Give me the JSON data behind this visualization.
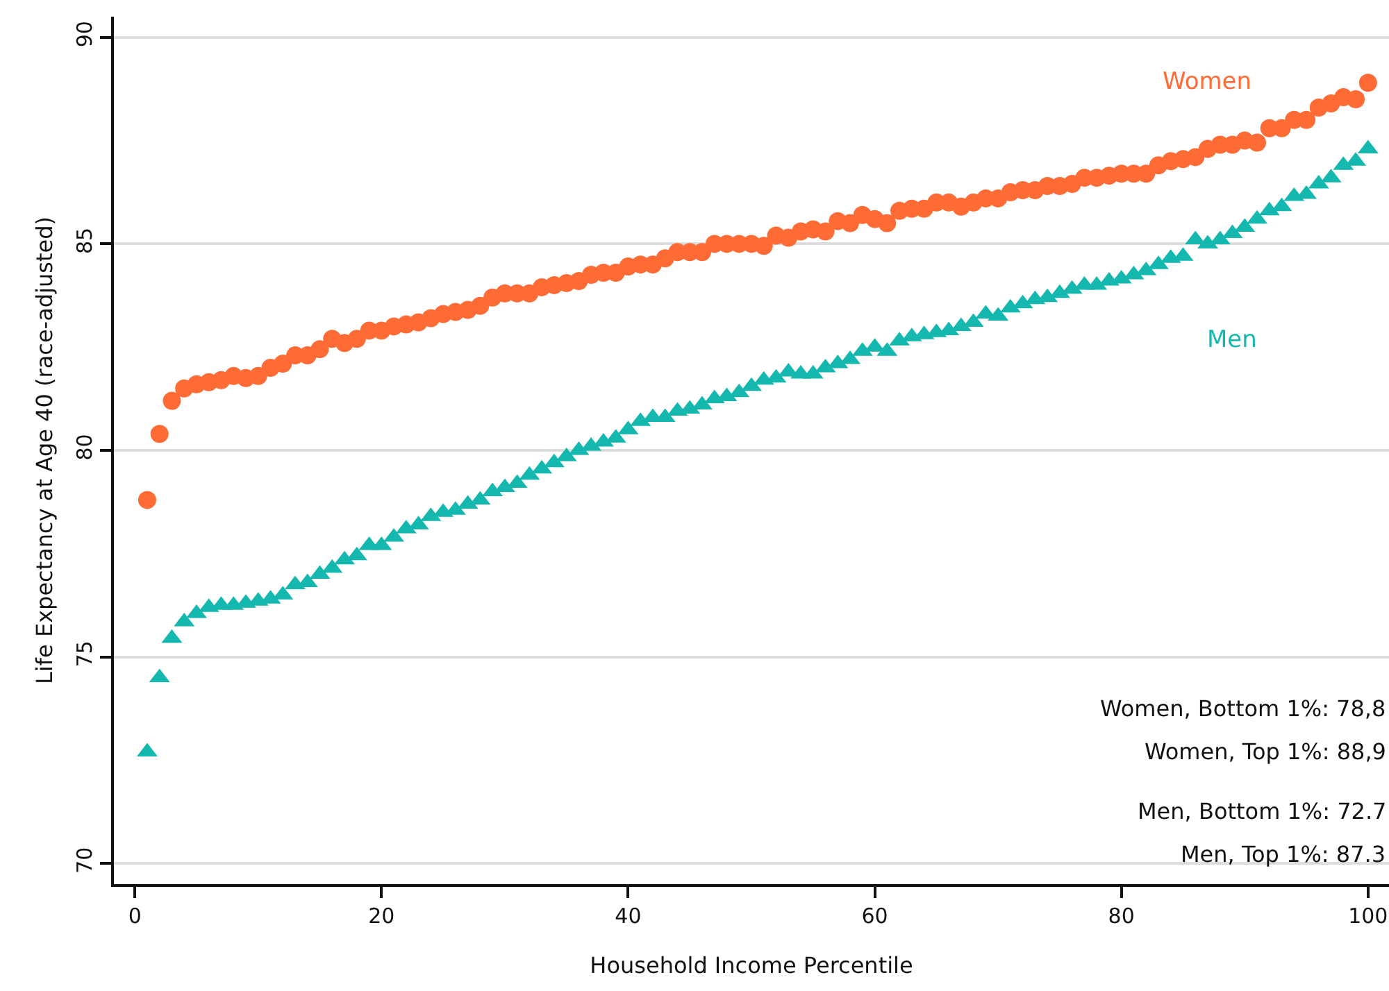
{
  "chart_data": {
    "type": "scatter",
    "xlabel": "Household Income Percentile",
    "ylabel": "Life Expectancy at Age 40 (race-adjusted)",
    "x": [
      1,
      2,
      3,
      4,
      5,
      6,
      7,
      8,
      9,
      10,
      11,
      12,
      13,
      14,
      15,
      16,
      17,
      18,
      19,
      20,
      21,
      22,
      23,
      24,
      25,
      26,
      27,
      28,
      29,
      30,
      31,
      32,
      33,
      34,
      35,
      36,
      37,
      38,
      39,
      40,
      41,
      42,
      43,
      44,
      45,
      46,
      47,
      48,
      49,
      50,
      51,
      52,
      53,
      54,
      55,
      56,
      57,
      58,
      59,
      60,
      61,
      62,
      63,
      64,
      65,
      66,
      67,
      68,
      69,
      70,
      71,
      72,
      73,
      74,
      75,
      76,
      77,
      78,
      79,
      80,
      81,
      82,
      83,
      84,
      85,
      86,
      87,
      88,
      89,
      90,
      91,
      92,
      93,
      94,
      95,
      96,
      97,
      98,
      99,
      100
    ],
    "series": [
      {
        "name": "Women",
        "color": "#ff6b35",
        "marker": "circle",
        "values": [
          78.8,
          80.4,
          81.2,
          81.5,
          81.6,
          81.65,
          81.7,
          81.8,
          81.75,
          81.8,
          82.0,
          82.1,
          82.3,
          82.3,
          82.45,
          82.7,
          82.6,
          82.7,
          82.9,
          82.9,
          83.0,
          83.05,
          83.1,
          83.2,
          83.3,
          83.35,
          83.4,
          83.5,
          83.7,
          83.8,
          83.8,
          83.8,
          83.95,
          84.0,
          84.05,
          84.1,
          84.25,
          84.3,
          84.3,
          84.45,
          84.5,
          84.5,
          84.65,
          84.8,
          84.8,
          84.8,
          85.0,
          85.0,
          85.0,
          85.0,
          84.95,
          85.2,
          85.15,
          85.3,
          85.35,
          85.3,
          85.55,
          85.5,
          85.7,
          85.6,
          85.5,
          85.8,
          85.85,
          85.85,
          86.0,
          86.0,
          85.9,
          86.0,
          86.1,
          86.1,
          86.25,
          86.3,
          86.3,
          86.4,
          86.4,
          86.45,
          86.6,
          86.6,
          86.65,
          86.7,
          86.7,
          86.7,
          86.9,
          87.0,
          87.05,
          87.1,
          87.3,
          87.4,
          87.4,
          87.5,
          87.45,
          87.8,
          87.8,
          88.0,
          88.0,
          88.3,
          88.4,
          88.55,
          88.5,
          88.9
        ]
      },
      {
        "name": "Men",
        "color": "#14b8ae",
        "marker": "triangle",
        "values": [
          72.7,
          74.5,
          75.45,
          75.85,
          76.05,
          76.2,
          76.25,
          76.25,
          76.3,
          76.35,
          76.4,
          76.5,
          76.75,
          76.8,
          77.0,
          77.15,
          77.35,
          77.45,
          77.7,
          77.7,
          77.9,
          78.1,
          78.2,
          78.4,
          78.5,
          78.55,
          78.7,
          78.8,
          79.0,
          79.1,
          79.2,
          79.4,
          79.55,
          79.7,
          79.85,
          80.0,
          80.1,
          80.2,
          80.3,
          80.5,
          80.7,
          80.8,
          80.8,
          80.95,
          81.0,
          81.1,
          81.25,
          81.3,
          81.4,
          81.55,
          81.7,
          81.75,
          81.9,
          81.85,
          81.85,
          82.0,
          82.1,
          82.2,
          82.4,
          82.5,
          82.4,
          82.65,
          82.75,
          82.8,
          82.85,
          82.9,
          83.0,
          83.1,
          83.3,
          83.25,
          83.45,
          83.55,
          83.65,
          83.7,
          83.8,
          83.9,
          84.0,
          84.0,
          84.1,
          84.15,
          84.25,
          84.35,
          84.5,
          84.65,
          84.7,
          85.1,
          85.0,
          85.1,
          85.25,
          85.4,
          85.6,
          85.8,
          85.9,
          86.15,
          86.2,
          86.45,
          86.6,
          86.9,
          87.0,
          87.3
        ]
      }
    ],
    "xlim": [
      -1.7,
      101.7
    ],
    "xticks": [
      0,
      20,
      40,
      60,
      80,
      100
    ],
    "ylim": [
      69.5,
      90.5
    ],
    "yticks": [
      70,
      75,
      80,
      85,
      90
    ],
    "grid": "y",
    "annotations": [
      "Women, Bottom 1%: 78,8",
      "Women, Top 1%: 88,9",
      "Men, Bottom 1%: 72.7",
      "Men, Top 1%: 87.3"
    ]
  }
}
